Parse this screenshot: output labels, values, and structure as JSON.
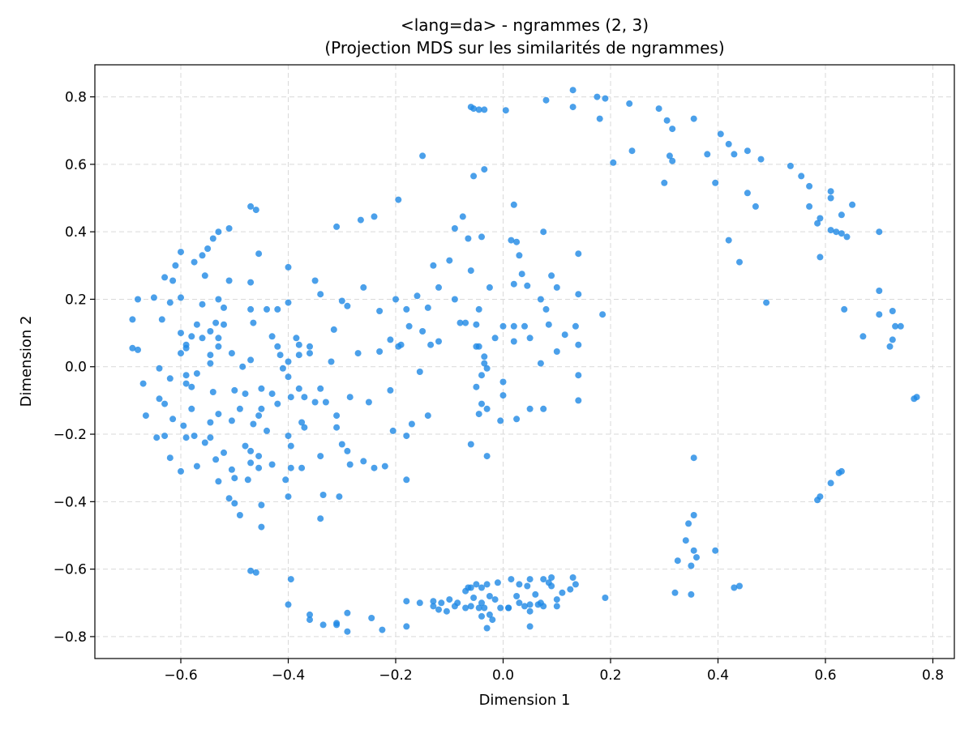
{
  "chart_data": {
    "type": "scatter",
    "title": "<lang=da> - ngrammes (2, 3)",
    "subtitle": "(Projection MDS sur les similarités de ngrammes)",
    "xlabel": "Dimension 1",
    "ylabel": "Dimension 2",
    "xlim": [
      -0.76,
      0.84
    ],
    "ylim": [
      -0.865,
      0.895
    ],
    "xticks": [
      -0.6,
      -0.4,
      -0.2,
      0.0,
      0.2,
      0.4,
      0.6,
      0.8
    ],
    "yticks": [
      -0.8,
      -0.6,
      -0.4,
      -0.2,
      0.0,
      0.2,
      0.4,
      0.6,
      0.8
    ],
    "xtick_labels": [
      "−0.6",
      "−0.4",
      "−0.2",
      "0.0",
      "0.2",
      "0.4",
      "0.6",
      "0.8"
    ],
    "ytick_labels": [
      "−0.8",
      "−0.6",
      "−0.4",
      "−0.2",
      "0.0",
      "0.2",
      "0.4",
      "0.6",
      "0.8"
    ],
    "grid": true,
    "marker_color": "#1E88E5",
    "marker_alpha": 0.8,
    "points": [
      [
        0.13,
        0.82
      ],
      [
        0.175,
        0.8
      ],
      [
        0.19,
        0.795
      ],
      [
        0.08,
        0.79
      ],
      [
        0.13,
        0.77
      ],
      [
        0.235,
        0.78
      ],
      [
        0.29,
        0.765
      ],
      [
        0.355,
        0.735
      ],
      [
        0.18,
        0.735
      ],
      [
        0.305,
        0.73
      ],
      [
        0.315,
        0.705
      ],
      [
        -0.06,
        0.77
      ],
      [
        -0.055,
        0.765
      ],
      [
        -0.045,
        0.762
      ],
      [
        -0.035,
        0.762
      ],
      [
        0.005,
        0.76
      ],
      [
        0.405,
        0.69
      ],
      [
        0.42,
        0.66
      ],
      [
        0.455,
        0.64
      ],
      [
        0.43,
        0.63
      ],
      [
        0.38,
        0.63
      ],
      [
        0.31,
        0.625
      ],
      [
        0.24,
        0.64
      ],
      [
        0.205,
        0.605
      ],
      [
        0.315,
        0.61
      ],
      [
        0.48,
        0.615
      ],
      [
        0.535,
        0.595
      ],
      [
        0.555,
        0.565
      ],
      [
        -0.15,
        0.625
      ],
      [
        -0.035,
        0.585
      ],
      [
        -0.055,
        0.565
      ],
      [
        -0.195,
        0.495
      ],
      [
        0.02,
        0.48
      ],
      [
        0.455,
        0.515
      ],
      [
        0.395,
        0.545
      ],
      [
        0.3,
        0.545
      ],
      [
        0.57,
        0.535
      ],
      [
        0.61,
        0.52
      ],
      [
        0.61,
        0.5
      ],
      [
        0.65,
        0.48
      ],
      [
        0.47,
        0.475
      ],
      [
        0.57,
        0.475
      ],
      [
        0.63,
        0.45
      ],
      [
        0.59,
        0.44
      ],
      [
        0.585,
        0.425
      ],
      [
        -0.47,
        0.475
      ],
      [
        -0.46,
        0.465
      ],
      [
        -0.24,
        0.445
      ],
      [
        -0.265,
        0.435
      ],
      [
        -0.31,
        0.415
      ],
      [
        -0.075,
        0.445
      ],
      [
        -0.09,
        0.41
      ],
      [
        -0.065,
        0.38
      ],
      [
        -0.04,
        0.385
      ],
      [
        0.075,
        0.4
      ],
      [
        0.015,
        0.375
      ],
      [
        0.025,
        0.37
      ],
      [
        0.03,
        0.33
      ],
      [
        -0.1,
        0.315
      ],
      [
        -0.13,
        0.3
      ],
      [
        -0.06,
        0.285
      ],
      [
        0.14,
        0.335
      ],
      [
        0.09,
        0.27
      ],
      [
        0.035,
        0.275
      ],
      [
        0.02,
        0.245
      ],
      [
        -0.025,
        0.235
      ],
      [
        0.42,
        0.375
      ],
      [
        0.44,
        0.31
      ],
      [
        0.61,
        0.405
      ],
      [
        0.62,
        0.4
      ],
      [
        0.63,
        0.395
      ],
      [
        0.64,
        0.385
      ],
      [
        0.7,
        0.4
      ],
      [
        0.59,
        0.325
      ],
      [
        -0.51,
        0.41
      ],
      [
        -0.53,
        0.4
      ],
      [
        -0.54,
        0.38
      ],
      [
        -0.55,
        0.35
      ],
      [
        -0.56,
        0.33
      ],
      [
        -0.6,
        0.34
      ],
      [
        -0.575,
        0.31
      ],
      [
        -0.61,
        0.3
      ],
      [
        -0.63,
        0.265
      ],
      [
        -0.615,
        0.255
      ],
      [
        -0.455,
        0.335
      ],
      [
        -0.4,
        0.295
      ],
      [
        -0.35,
        0.255
      ],
      [
        -0.47,
        0.25
      ],
      [
        -0.51,
        0.255
      ],
      [
        -0.555,
        0.27
      ],
      [
        -0.68,
        0.2
      ],
      [
        -0.65,
        0.205
      ],
      [
        -0.6,
        0.205
      ],
      [
        -0.62,
        0.19
      ],
      [
        -0.56,
        0.185
      ],
      [
        -0.53,
        0.2
      ],
      [
        -0.52,
        0.175
      ],
      [
        -0.47,
        0.17
      ],
      [
        -0.44,
        0.17
      ],
      [
        -0.42,
        0.17
      ],
      [
        -0.4,
        0.19
      ],
      [
        -0.34,
        0.215
      ],
      [
        -0.3,
        0.195
      ],
      [
        -0.29,
        0.18
      ],
      [
        -0.26,
        0.235
      ],
      [
        -0.23,
        0.165
      ],
      [
        -0.2,
        0.2
      ],
      [
        -0.16,
        0.21
      ],
      [
        -0.12,
        0.235
      ],
      [
        -0.18,
        0.17
      ],
      [
        -0.14,
        0.175
      ],
      [
        -0.09,
        0.2
      ],
      [
        -0.045,
        0.17
      ],
      [
        0.045,
        0.24
      ],
      [
        0.07,
        0.2
      ],
      [
        0.1,
        0.235
      ],
      [
        0.14,
        0.215
      ],
      [
        0.08,
        0.17
      ],
      [
        0.185,
        0.155
      ],
      [
        0.49,
        0.19
      ],
      [
        0.7,
        0.225
      ],
      [
        0.7,
        0.155
      ],
      [
        0.725,
        0.165
      ],
      [
        0.635,
        0.17
      ],
      [
        0.73,
        0.12
      ],
      [
        0.74,
        0.12
      ],
      [
        0.725,
        0.08
      ],
      [
        0.67,
        0.09
      ],
      [
        0.72,
        0.06
      ],
      [
        -0.69,
        0.14
      ],
      [
        -0.635,
        0.14
      ],
      [
        -0.57,
        0.125
      ],
      [
        -0.535,
        0.13
      ],
      [
        -0.52,
        0.125
      ],
      [
        -0.465,
        0.13
      ],
      [
        -0.43,
        0.09
      ],
      [
        -0.385,
        0.085
      ],
      [
        -0.36,
        0.06
      ],
      [
        -0.38,
        0.065
      ],
      [
        -0.315,
        0.11
      ],
      [
        -0.21,
        0.08
      ],
      [
        -0.195,
        0.06
      ],
      [
        -0.175,
        0.12
      ],
      [
        -0.15,
        0.105
      ],
      [
        -0.08,
        0.13
      ],
      [
        -0.07,
        0.13
      ],
      [
        -0.05,
        0.125
      ],
      [
        -0.045,
        0.06
      ],
      [
        0.0,
        0.12
      ],
      [
        0.02,
        0.12
      ],
      [
        0.04,
        0.12
      ],
      [
        0.05,
        0.085
      ],
      [
        0.085,
        0.125
      ],
      [
        0.115,
        0.095
      ],
      [
        0.135,
        0.12
      ],
      [
        0.1,
        0.045
      ],
      [
        0.14,
        0.065
      ],
      [
        -0.135,
        0.065
      ],
      [
        -0.12,
        0.075
      ],
      [
        -0.015,
        0.085
      ],
      [
        -0.69,
        0.055
      ],
      [
        -0.68,
        0.05
      ],
      [
        -0.6,
        0.1
      ],
      [
        -0.59,
        0.065
      ],
      [
        -0.58,
        0.09
      ],
      [
        -0.56,
        0.085
      ],
      [
        -0.545,
        0.105
      ],
      [
        -0.53,
        0.085
      ],
      [
        -0.53,
        0.06
      ],
      [
        -0.505,
        0.04
      ],
      [
        -0.47,
        0.02
      ],
      [
        -0.415,
        0.035
      ],
      [
        -0.4,
        0.015
      ],
      [
        -0.36,
        0.04
      ],
      [
        -0.38,
        0.035
      ],
      [
        -0.27,
        0.04
      ],
      [
        -0.23,
        0.045
      ],
      [
        -0.19,
        0.065
      ],
      [
        -0.05,
        0.06
      ],
      [
        -0.035,
        0.03
      ],
      [
        0.02,
        0.075
      ],
      [
        0.07,
        0.01
      ],
      [
        -0.6,
        0.04
      ],
      [
        -0.59,
        0.055
      ],
      [
        -0.545,
        0.035
      ],
      [
        -0.64,
        -0.005
      ],
      [
        -0.59,
        -0.025
      ],
      [
        -0.57,
        -0.02
      ],
      [
        -0.545,
        0.01
      ],
      [
        -0.485,
        0.0
      ],
      [
        -0.42,
        0.06
      ],
      [
        -0.41,
        -0.005
      ],
      [
        -0.4,
        -0.03
      ],
      [
        -0.34,
        -0.065
      ],
      [
        -0.32,
        0.015
      ],
      [
        -0.155,
        -0.015
      ],
      [
        -0.035,
        0.01
      ],
      [
        -0.03,
        -0.005
      ],
      [
        -0.04,
        -0.025
      ],
      [
        0.0,
        -0.045
      ],
      [
        0.14,
        -0.025
      ],
      [
        -0.67,
        -0.05
      ],
      [
        -0.62,
        -0.035
      ],
      [
        -0.59,
        -0.05
      ],
      [
        -0.58,
        -0.06
      ],
      [
        -0.54,
        -0.075
      ],
      [
        -0.5,
        -0.07
      ],
      [
        -0.48,
        -0.08
      ],
      [
        -0.45,
        -0.065
      ],
      [
        -0.43,
        -0.08
      ],
      [
        -0.38,
        -0.065
      ],
      [
        -0.37,
        -0.09
      ],
      [
        -0.35,
        -0.105
      ],
      [
        -0.395,
        -0.09
      ],
      [
        -0.285,
        -0.09
      ],
      [
        -0.25,
        -0.105
      ],
      [
        -0.21,
        -0.07
      ],
      [
        -0.05,
        -0.06
      ],
      [
        0.0,
        -0.085
      ],
      [
        0.05,
        -0.125
      ],
      [
        0.075,
        -0.125
      ],
      [
        0.14,
        -0.1
      ],
      [
        -0.64,
        -0.095
      ],
      [
        -0.63,
        -0.11
      ],
      [
        -0.58,
        -0.125
      ],
      [
        -0.53,
        -0.14
      ],
      [
        -0.49,
        -0.125
      ],
      [
        -0.45,
        -0.125
      ],
      [
        -0.42,
        -0.11
      ],
      [
        -0.33,
        -0.105
      ],
      [
        -0.31,
        -0.145
      ],
      [
        -0.17,
        -0.17
      ],
      [
        -0.14,
        -0.145
      ],
      [
        -0.045,
        -0.14
      ],
      [
        -0.03,
        -0.125
      ],
      [
        -0.005,
        -0.16
      ],
      [
        0.025,
        -0.155
      ],
      [
        -0.04,
        -0.11
      ],
      [
        -0.665,
        -0.145
      ],
      [
        -0.615,
        -0.155
      ],
      [
        -0.595,
        -0.175
      ],
      [
        -0.545,
        -0.165
      ],
      [
        -0.505,
        -0.16
      ],
      [
        -0.465,
        -0.17
      ],
      [
        -0.455,
        -0.145
      ],
      [
        -0.44,
        -0.19
      ],
      [
        -0.375,
        -0.165
      ],
      [
        -0.37,
        -0.18
      ],
      [
        -0.31,
        -0.18
      ],
      [
        -0.205,
        -0.19
      ],
      [
        -0.18,
        -0.205
      ],
      [
        -0.06,
        -0.23
      ],
      [
        -0.645,
        -0.21
      ],
      [
        -0.63,
        -0.205
      ],
      [
        -0.59,
        -0.21
      ],
      [
        -0.575,
        -0.205
      ],
      [
        -0.555,
        -0.225
      ],
      [
        -0.545,
        -0.21
      ],
      [
        -0.52,
        -0.255
      ],
      [
        -0.48,
        -0.235
      ],
      [
        -0.47,
        -0.25
      ],
      [
        -0.4,
        -0.205
      ],
      [
        -0.395,
        -0.235
      ],
      [
        -0.3,
        -0.23
      ],
      [
        -0.29,
        -0.25
      ],
      [
        -0.03,
        -0.265
      ],
      [
        -0.62,
        -0.27
      ],
      [
        -0.57,
        -0.295
      ],
      [
        -0.535,
        -0.275
      ],
      [
        -0.505,
        -0.305
      ],
      [
        -0.5,
        -0.33
      ],
      [
        -0.47,
        -0.285
      ],
      [
        -0.455,
        -0.265
      ],
      [
        -0.455,
        -0.3
      ],
      [
        -0.43,
        -0.29
      ],
      [
        -0.395,
        -0.3
      ],
      [
        -0.375,
        -0.3
      ],
      [
        -0.34,
        -0.265
      ],
      [
        -0.285,
        -0.29
      ],
      [
        -0.26,
        -0.28
      ],
      [
        -0.24,
        -0.3
      ],
      [
        -0.22,
        -0.295
      ],
      [
        -0.18,
        -0.335
      ],
      [
        -0.6,
        -0.31
      ],
      [
        -0.53,
        -0.34
      ],
      [
        -0.51,
        -0.39
      ],
      [
        -0.5,
        -0.405
      ],
      [
        -0.475,
        -0.335
      ],
      [
        -0.45,
        -0.41
      ],
      [
        -0.405,
        -0.335
      ],
      [
        -0.4,
        -0.385
      ],
      [
        -0.335,
        -0.38
      ],
      [
        -0.305,
        -0.385
      ],
      [
        -0.49,
        -0.44
      ],
      [
        -0.45,
        -0.475
      ],
      [
        -0.34,
        -0.45
      ],
      [
        0.355,
        -0.27
      ],
      [
        0.59,
        -0.385
      ],
      [
        0.585,
        -0.395
      ],
      [
        0.61,
        -0.345
      ],
      [
        0.63,
        -0.31
      ],
      [
        0.625,
        -0.315
      ],
      [
        0.355,
        -0.44
      ],
      [
        0.345,
        -0.465
      ],
      [
        0.34,
        -0.515
      ],
      [
        0.355,
        -0.545
      ],
      [
        0.325,
        -0.575
      ],
      [
        0.36,
        -0.565
      ],
      [
        0.395,
        -0.545
      ],
      [
        0.35,
        -0.59
      ],
      [
        0.32,
        -0.67
      ],
      [
        0.35,
        -0.675
      ],
      [
        0.44,
        -0.65
      ],
      [
        0.43,
        -0.655
      ],
      [
        -0.47,
        -0.605
      ],
      [
        -0.46,
        -0.61
      ],
      [
        -0.395,
        -0.63
      ],
      [
        -0.06,
        -0.655
      ],
      [
        -0.05,
        -0.645
      ],
      [
        -0.04,
        -0.655
      ],
      [
        -0.03,
        -0.645
      ],
      [
        -0.025,
        -0.68
      ],
      [
        -0.01,
        -0.64
      ],
      [
        0.015,
        -0.63
      ],
      [
        0.03,
        -0.645
      ],
      [
        0.045,
        -0.65
      ],
      [
        0.05,
        -0.63
      ],
      [
        0.075,
        -0.63
      ],
      [
        0.085,
        -0.64
      ],
      [
        0.09,
        -0.625
      ],
      [
        0.13,
        -0.625
      ],
      [
        0.125,
        -0.66
      ],
      [
        0.135,
        -0.645
      ],
      [
        0.11,
        -0.67
      ],
      [
        0.09,
        -0.65
      ],
      [
        0.06,
        -0.675
      ],
      [
        0.07,
        -0.7
      ],
      [
        -0.1,
        -0.69
      ],
      [
        -0.085,
        -0.7
      ],
      [
        -0.07,
        -0.665
      ],
      [
        -0.065,
        -0.655
      ],
      [
        -0.055,
        -0.685
      ],
      [
        -0.04,
        -0.7
      ],
      [
        -0.035,
        -0.715
      ],
      [
        -0.015,
        -0.69
      ],
      [
        -0.005,
        -0.715
      ],
      [
        0.01,
        -0.715
      ],
      [
        0.025,
        -0.68
      ],
      [
        0.03,
        -0.7
      ],
      [
        0.04,
        -0.71
      ],
      [
        0.05,
        -0.705
      ],
      [
        0.065,
        -0.705
      ],
      [
        0.1,
        -0.69
      ],
      [
        0.1,
        -0.71
      ],
      [
        0.075,
        -0.71
      ],
      [
        0.05,
        -0.725
      ],
      [
        0.19,
        -0.685
      ],
      [
        -0.18,
        -0.695
      ],
      [
        -0.13,
        -0.695
      ],
      [
        -0.13,
        -0.71
      ],
      [
        -0.115,
        -0.7
      ],
      [
        -0.105,
        -0.725
      ],
      [
        -0.09,
        -0.71
      ],
      [
        -0.06,
        -0.71
      ],
      [
        -0.025,
        -0.735
      ],
      [
        -0.02,
        -0.75
      ],
      [
        -0.04,
        -0.74
      ],
      [
        -0.045,
        -0.715
      ],
      [
        0.05,
        -0.77
      ],
      [
        0.01,
        -0.715
      ],
      [
        -0.07,
        -0.715
      ],
      [
        -0.12,
        -0.72
      ],
      [
        -0.155,
        -0.7
      ],
      [
        -0.4,
        -0.705
      ],
      [
        -0.36,
        -0.735
      ],
      [
        -0.36,
        -0.75
      ],
      [
        -0.335,
        -0.765
      ],
      [
        -0.31,
        -0.765
      ],
      [
        -0.31,
        -0.76
      ],
      [
        -0.29,
        -0.785
      ],
      [
        -0.29,
        -0.73
      ],
      [
        -0.245,
        -0.745
      ],
      [
        -0.225,
        -0.78
      ],
      [
        -0.18,
        -0.77
      ],
      [
        -0.03,
        -0.775
      ],
      [
        0.765,
        -0.095
      ],
      [
        0.77,
        -0.09
      ]
    ]
  }
}
